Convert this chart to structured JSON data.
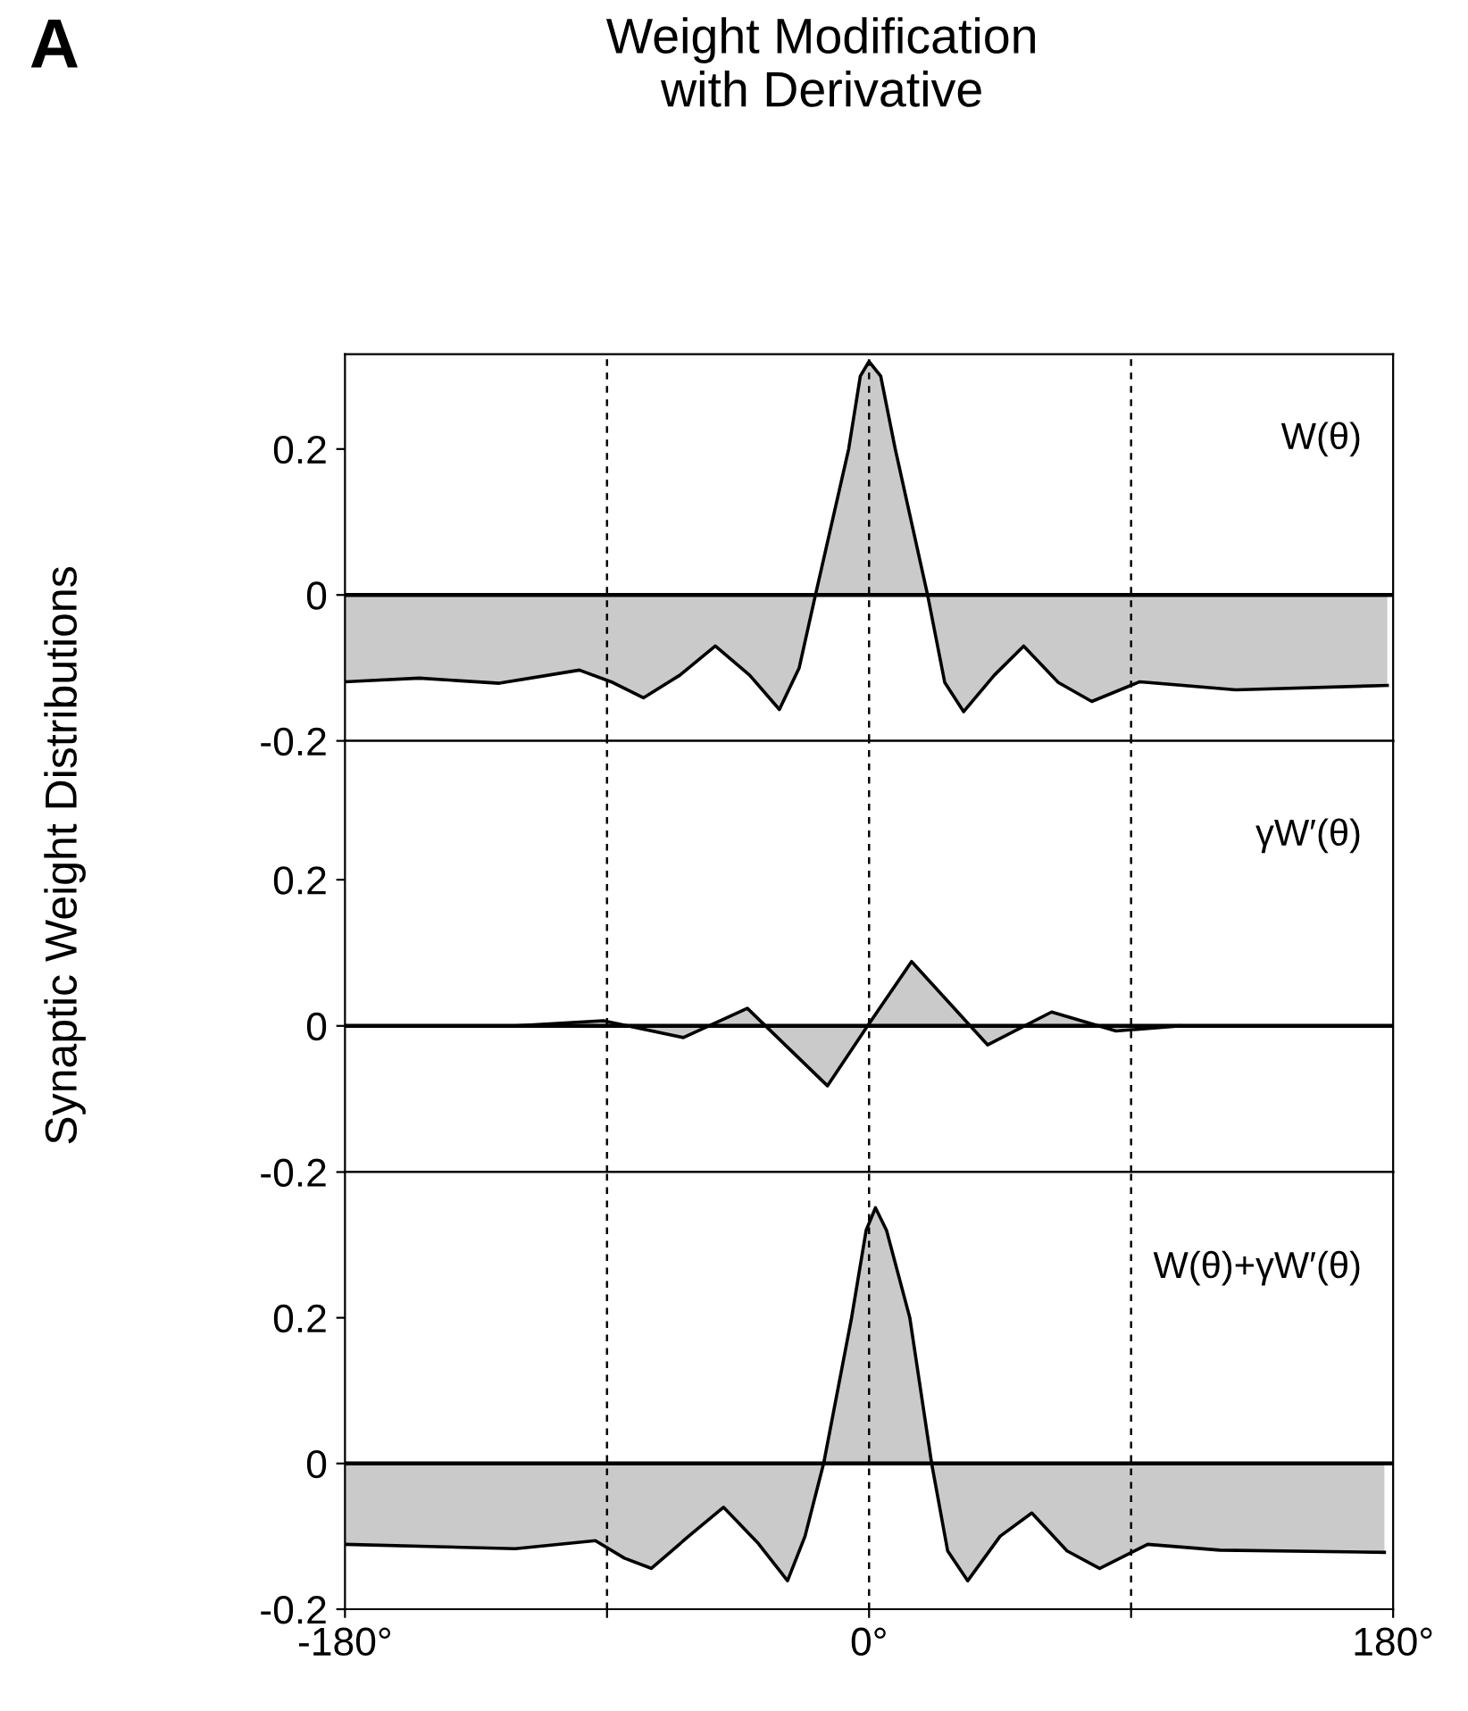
{
  "chart_data": [
    {
      "type": "area",
      "title": "Weight Modification\nwith Derivative",
      "annotations": [
        "A",
        "W(θ)"
      ],
      "x": [
        -180,
        -154.5,
        -127,
        -99.5,
        -88,
        -77.5,
        -65,
        -52.8,
        -41,
        -30.8,
        -24,
        -18.4,
        -7,
        -3,
        0,
        4,
        9,
        20.1,
        26,
        32.5,
        43,
        53.1,
        65,
        76.5,
        93,
        126,
        178
      ],
      "series": [
        {
          "color": "#666666",
          "values": [
            -0.119,
            -0.114,
            -0.121,
            -0.103,
            -0.12,
            -0.141,
            -0.11,
            -0.07,
            -0.11,
            -0.157,
            -0.1,
            0,
            0.2,
            0.3,
            0.32,
            0.3,
            0.2,
            0,
            -0.12,
            -0.16,
            -0.11,
            -0.07,
            -0.12,
            -0.146,
            -0.119,
            -0.13,
            -0.124
          ]
        }
      ],
      "xlim": [
        -180,
        180
      ],
      "ylim": [
        -0.2,
        0.33
      ],
      "yticks": [
        -0.2,
        0,
        0.2
      ],
      "tick_labels": "y",
      "grid": false,
      "ref_lines": [
        {
          "axis": "y",
          "value": 0,
          "line_style": "solid"
        },
        {
          "axis": "x",
          "value": -90,
          "line_style": "dashed"
        },
        {
          "axis": "x",
          "value": 0,
          "line_style": "dashed"
        },
        {
          "axis": "x",
          "value": 90,
          "line_style": "dashed"
        }
      ]
    },
    {
      "type": "area",
      "ylabel": "Synaptic Weight Distributions",
      "annotations": [
        "γW′(θ)"
      ],
      "x": [
        -121.5,
        -91.3,
        -63.8,
        -41.8,
        -14.3,
        -0.5,
        14.6,
        40.7,
        62.7,
        84.8,
        106.7
      ],
      "series": [
        {
          "color": "#666666",
          "values": [
            0,
            0.007,
            -0.016,
            0.024,
            -0.082,
            0,
            0.088,
            -0.026,
            0.019,
            -0.007,
            0
          ]
        }
      ],
      "xlim": [
        -180,
        180
      ],
      "ylim": [
        -0.2,
        0.39
      ],
      "yticks": [
        -0.2,
        0,
        0.2
      ],
      "tick_labels": "y",
      "grid": false,
      "ref_lines": [
        {
          "axis": "y",
          "value": 0,
          "line_style": "solid"
        },
        {
          "axis": "x",
          "value": -90,
          "line_style": "dashed"
        },
        {
          "axis": "x",
          "value": 0,
          "line_style": "dashed"
        },
        {
          "axis": "x",
          "value": 90,
          "line_style": "dashed"
        }
      ]
    },
    {
      "type": "area",
      "annotations": [
        "W(θ)+γW′(θ)"
      ],
      "x": [
        -180,
        -121.5,
        -94,
        -84,
        -74.8,
        -62,
        -50,
        -38,
        -28,
        -22,
        -15.6,
        -6,
        -1,
        2.2,
        6,
        14,
        21.5,
        27,
        33.9,
        45,
        55.9,
        68,
        79.2,
        95.7,
        120.5,
        177
      ],
      "series": [
        {
          "color": "#666666",
          "values": [
            -0.111,
            -0.117,
            -0.106,
            -0.13,
            -0.144,
            -0.1,
            -0.06,
            -0.11,
            -0.161,
            -0.1,
            0,
            0.2,
            0.32,
            0.351,
            0.32,
            0.2,
            0,
            -0.12,
            -0.161,
            -0.1,
            -0.068,
            -0.12,
            -0.144,
            -0.111,
            -0.119,
            -0.122
          ]
        }
      ],
      "xlim": [
        -180,
        180
      ],
      "xticks": [
        {
          "value": -180,
          "label": "-180°"
        },
        {
          "value": -90,
          "label": null
        },
        {
          "value": 0,
          "label": "0°"
        },
        {
          "value": 90,
          "label": null
        },
        {
          "value": 180,
          "label": "180°"
        }
      ],
      "ylim": [
        -0.2,
        0.4
      ],
      "yticks": [
        -0.2,
        0,
        0.2
      ],
      "grid": false,
      "ref_lines": [
        {
          "axis": "y",
          "value": 0,
          "line_style": "solid"
        },
        {
          "axis": "x",
          "value": -90,
          "line_style": "dashed"
        },
        {
          "axis": "x",
          "value": 0,
          "line_style": "dashed"
        },
        {
          "axis": "x",
          "value": 90,
          "line_style": "dashed"
        }
      ]
    }
  ]
}
